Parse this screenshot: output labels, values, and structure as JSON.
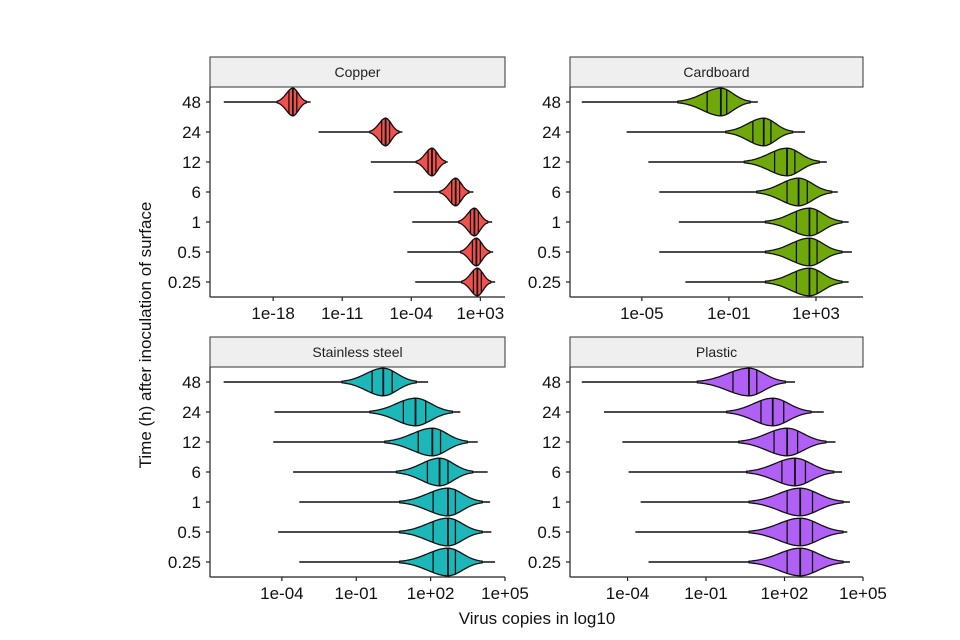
{
  "chart_data": {
    "type": "violin",
    "xlabel": "Virus copies in log10",
    "ylabel": "Time (h) after inoculation of surface",
    "categories": [
      "48",
      "24",
      "12",
      "6",
      "1",
      "0.5",
      "0.25"
    ],
    "grid": false,
    "facets": [
      {
        "title": "Copper",
        "color": "#F0514C",
        "xlim_log10": [
          -24.4,
          5.5
        ],
        "xticks_log10": [
          -18,
          -11,
          -4,
          3
        ],
        "xtick_labels": [
          "1e-18",
          "1e-11",
          "1e-04",
          "1e+03"
        ],
        "violins": [
          {
            "time": "48",
            "min": -23.0,
            "q1": -16.4,
            "median": -16.0,
            "q3": -15.6,
            "max": -14.2
          },
          {
            "time": "24",
            "min": -13.4,
            "q1": -7.0,
            "median": -6.6,
            "q3": -6.2,
            "max": -4.9
          },
          {
            "time": "12",
            "min": -8.1,
            "q1": -2.3,
            "median": -1.9,
            "q3": -1.5,
            "max": -0.3
          },
          {
            "time": "6",
            "min": -5.8,
            "q1": 0.1,
            "median": 0.5,
            "q3": 0.9,
            "max": 2.3
          },
          {
            "time": "1",
            "min": -3.9,
            "q1": 2.0,
            "median": 2.4,
            "q3": 2.8,
            "max": 4.2
          },
          {
            "time": "0.5",
            "min": -4.4,
            "q1": 2.2,
            "median": 2.6,
            "q3": 3.0,
            "max": 4.3
          },
          {
            "time": "0.25",
            "min": -3.6,
            "q1": 2.3,
            "median": 2.7,
            "q3": 3.1,
            "max": 4.5
          }
        ]
      },
      {
        "title": "Cardboard",
        "color": "#6FA80A",
        "xlim_log10": [
          -8.3,
          5.16
        ],
        "xticks_log10": [
          -5,
          -1,
          3
        ],
        "xtick_labels": [
          "1e-05",
          "1e-01",
          "1e+03"
        ],
        "violins": [
          {
            "time": "48",
            "min": -7.76,
            "q1": -2.0,
            "median": -1.37,
            "q3": -1.1,
            "max": 0.33
          },
          {
            "time": "24",
            "min": -5.7,
            "q1": 0.1,
            "median": 0.6,
            "q3": 0.93,
            "max": 2.5
          },
          {
            "time": "12",
            "min": -4.7,
            "q1": 1.1,
            "median": 1.67,
            "q3": 2.03,
            "max": 3.5
          },
          {
            "time": "6",
            "min": -4.2,
            "q1": 1.67,
            "median": 2.2,
            "q3": 2.6,
            "max": 4.0
          },
          {
            "time": "1",
            "min": -3.3,
            "q1": 2.1,
            "median": 2.7,
            "q3": 3.05,
            "max": 4.5
          },
          {
            "time": "0.5",
            "min": -4.2,
            "q1": 2.1,
            "median": 2.7,
            "q3": 3.05,
            "max": 4.65
          },
          {
            "time": "0.25",
            "min": -3.0,
            "q1": 2.1,
            "median": 2.7,
            "q3": 3.05,
            "max": 4.5
          }
        ]
      },
      {
        "title": "Stainless steel",
        "color": "#1DB7BA",
        "xlim_log10": [
          -6.9,
          5.0
        ],
        "xticks_log10": [
          -4,
          -1,
          2,
          5
        ],
        "xtick_labels": [
          "1e-04",
          "1e-01",
          "1e+02",
          "1e+05"
        ],
        "violins": [
          {
            "time": "48",
            "min": -6.35,
            "q1": -0.36,
            "median": 0.09,
            "q3": 0.45,
            "max": 1.9
          },
          {
            "time": "24",
            "min": -4.3,
            "q1": 0.9,
            "median": 1.39,
            "q3": 1.8,
            "max": 3.2
          },
          {
            "time": "12",
            "min": -4.35,
            "q1": 1.5,
            "median": 2.07,
            "q3": 2.4,
            "max": 3.9
          },
          {
            "time": "6",
            "min": -3.55,
            "q1": 1.87,
            "median": 2.36,
            "q3": 2.7,
            "max": 4.3
          },
          {
            "time": "1",
            "min": -3.3,
            "q1": 2.1,
            "median": 2.7,
            "q3": 3.0,
            "max": 4.4
          },
          {
            "time": "0.5",
            "min": -4.15,
            "q1": 2.1,
            "median": 2.7,
            "q3": 3.0,
            "max": 4.45
          },
          {
            "time": "0.25",
            "min": -3.3,
            "q1": 2.1,
            "median": 2.7,
            "q3": 3.0,
            "max": 4.6
          }
        ]
      },
      {
        "title": "Plastic",
        "color": "#B160F5",
        "xlim_log10": [
          -6.2,
          5.0
        ],
        "xticks_log10": [
          -4,
          -1,
          2,
          5
        ],
        "xtick_labels": [
          "1e-04",
          "1e-01",
          "1e+02",
          "1e+05"
        ],
        "violins": [
          {
            "time": "48",
            "min": -5.75,
            "q1": 0.03,
            "median": 0.64,
            "q3": 0.94,
            "max": 2.4
          },
          {
            "time": "24",
            "min": -4.9,
            "q1": 1.1,
            "median": 1.55,
            "q3": 1.97,
            "max": 3.5
          },
          {
            "time": "12",
            "min": -4.2,
            "q1": 1.6,
            "median": 2.1,
            "q3": 2.5,
            "max": 3.95
          },
          {
            "time": "6",
            "min": -3.96,
            "q1": 1.9,
            "median": 2.4,
            "q3": 2.8,
            "max": 4.2
          },
          {
            "time": "1",
            "min": -3.5,
            "q1": 2.1,
            "median": 2.6,
            "q3": 3.07,
            "max": 4.5
          },
          {
            "time": "0.5",
            "min": -3.7,
            "q1": 2.1,
            "median": 2.6,
            "q3": 3.07,
            "max": 4.4
          },
          {
            "time": "0.25",
            "min": -3.2,
            "q1": 2.1,
            "median": 2.6,
            "q3": 3.07,
            "max": 4.5
          }
        ]
      }
    ]
  }
}
